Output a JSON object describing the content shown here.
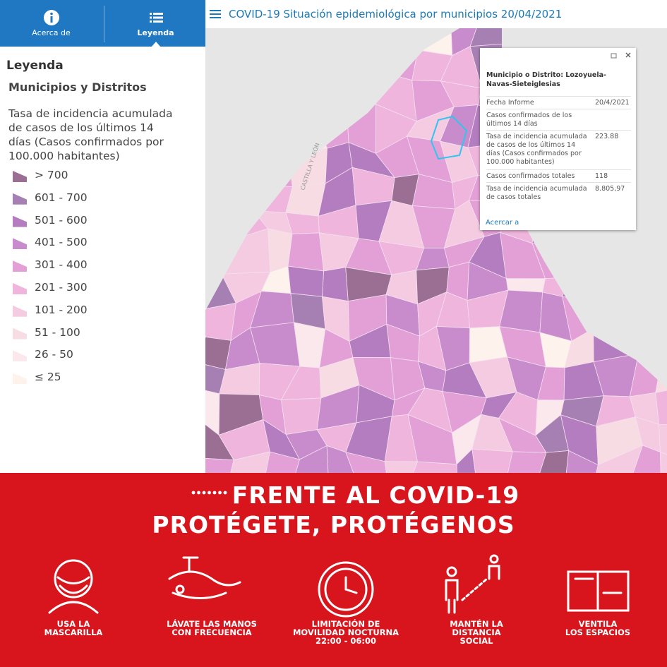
{
  "tabs": [
    "Acerca de",
    "Leyenda"
  ],
  "header": {
    "title": "COVID-19 Situación epidemiológica por municipios 20/04/2021"
  },
  "legend": {
    "title": "Leyenda",
    "subtitle": "Municipios y Distritos",
    "description": "Tasa de incidencia acumulada de casos de los últimos 14 días (Casos confirmados por 100.000 habitantes)",
    "items": [
      {
        "label": "> 700",
        "color": "#9b6f94"
      },
      {
        "label": "601 - 700",
        "color": "#a680b2"
      },
      {
        "label": "501 - 600",
        "color": "#b47dbf"
      },
      {
        "label": "401 - 500",
        "color": "#c88bcb"
      },
      {
        "label": "301 - 400",
        "color": "#e3a0d6"
      },
      {
        "label": "201 - 300",
        "color": "#efb5dc"
      },
      {
        "label": "101 - 200",
        "color": "#f5cbe2"
      },
      {
        "label": "51 - 100",
        "color": "#f8dce3"
      },
      {
        "label": "26 - 50",
        "color": "#fbe8ec"
      },
      {
        "label": "≤ 25",
        "color": "#fdf3ec"
      }
    ]
  },
  "popup": {
    "title": "Municipio o Distrito: Lozoyuela-Navas-Sieteiglesias",
    "rows": [
      {
        "label": "Fecha Informe",
        "value": "20/4/2021"
      },
      {
        "label": "Casos confirmados de los últimos 14 días",
        "value": ""
      },
      {
        "label": "Tasa de incidencia acumulada de casos de los últimos 14 días (Casos confirmados por 100.000 habitantes)",
        "value": "223.88"
      },
      {
        "label": "Casos confirmados totales",
        "value": "118"
      },
      {
        "label": "Tasa de incidencia acumulada de casos totales",
        "value": "8.805,97"
      }
    ],
    "link": "Acercar a"
  },
  "map": {
    "region_label": "CASTILLA Y LEÓN"
  },
  "banner": {
    "line1": "FRENTE AL COVID-19",
    "line2": "PROTÉGETE, PROTÉGENOS",
    "items": [
      {
        "lines": [
          "USA LA",
          "MASCARILLA"
        ]
      },
      {
        "lines": [
          "LÁVATE LAS MANOS",
          "CON FRECUENCIA"
        ]
      },
      {
        "lines": [
          "LIMITACIÓN DE",
          "MOVILIDAD NOCTURNA",
          "22:00 - 06:00"
        ]
      },
      {
        "lines": [
          "MANTÉN LA",
          "DISTANCIA",
          "SOCIAL"
        ]
      },
      {
        "lines": [
          "VENTILA",
          "LOS ESPACIOS"
        ]
      }
    ]
  }
}
